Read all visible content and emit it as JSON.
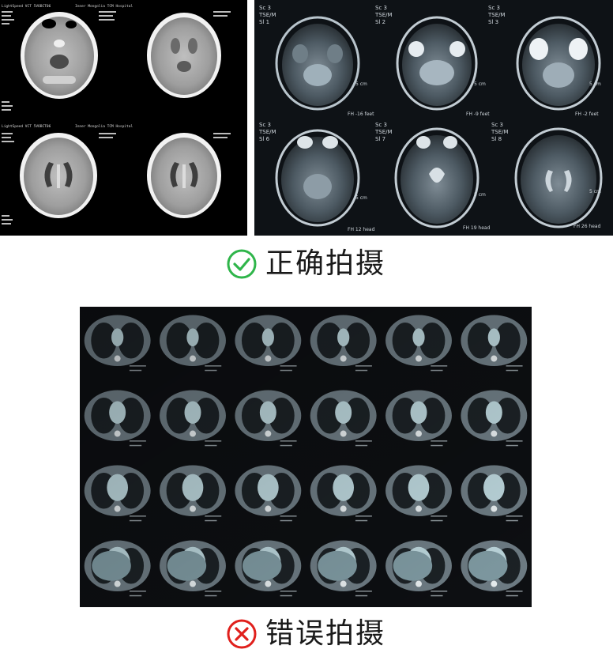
{
  "panels": {
    "ct_brain": {
      "header_line": "LightSpeed VCT 5VOBCT06",
      "hospital": "Inner Mongolia TCM Hospital"
    },
    "mri_brain": {
      "tiles": [
        {
          "series": "Sc 3",
          "seq": "TSE/M",
          "slice": "Sl 1",
          "pos": "FH -16 feet",
          "scale": "5 cm"
        },
        {
          "series": "Sc 3",
          "seq": "TSE/M",
          "slice": "Sl 2",
          "pos": "FH -9 feet",
          "scale": "5 cm"
        },
        {
          "series": "Sc 3",
          "seq": "TSE/M",
          "slice": "Sl 3",
          "pos": "FH -2 feet",
          "scale": "5 cm"
        },
        {
          "series": "Sc 3",
          "seq": "TSE/M",
          "slice": "Sl 6",
          "pos": "FH 12 head",
          "scale": "5 cm"
        },
        {
          "series": "Sc 3",
          "seq": "TSE/M",
          "slice": "Sl 7",
          "pos": "FH 19 head",
          "scale": "5 cm"
        },
        {
          "series": "Sc 3",
          "seq": "TSE/M",
          "slice": "Sl 8",
          "pos": "FH 26 head",
          "scale": "5 cm"
        }
      ]
    }
  },
  "captions": {
    "correct": {
      "text": "正确拍摄",
      "icon": "check-circle-icon",
      "color": "#2fb54a"
    },
    "wrong": {
      "text": "错误拍摄",
      "icon": "x-circle-icon",
      "color": "#e0201c"
    }
  }
}
